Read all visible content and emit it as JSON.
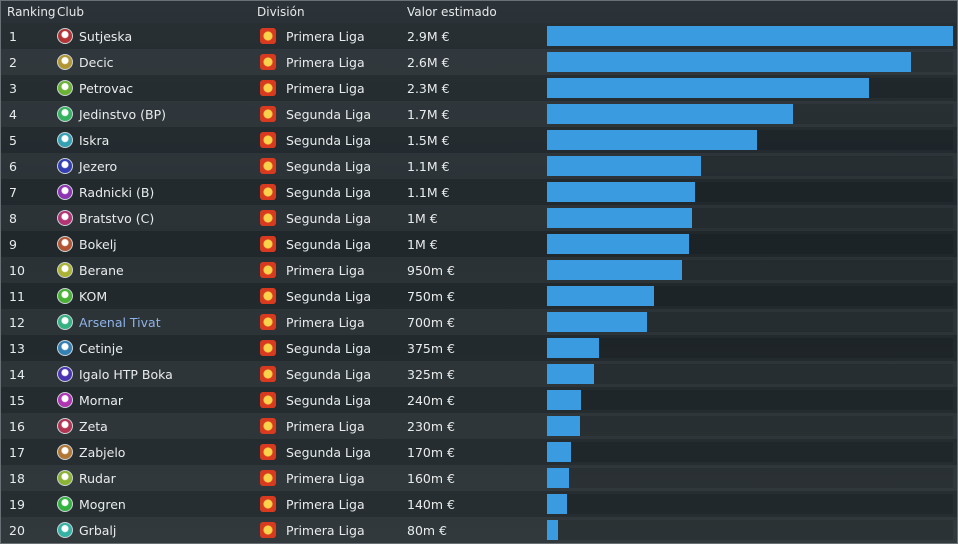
{
  "header": {
    "ranking": "Ranking",
    "club": "Club",
    "division": "División",
    "value": "Valor estimado"
  },
  "colors": {
    "bar": "#3a9be0",
    "link": "#8fb3e8"
  },
  "rows": [
    {
      "rank": "1",
      "club": "Sutjeska",
      "club_icon": "sutjeska-crest-icon",
      "division": "Primera Liga",
      "value": "2.9M €",
      "fraction": 1.0
    },
    {
      "rank": "2",
      "club": "Decic",
      "club_icon": "decic-crest-icon",
      "division": "Primera Liga",
      "value": "2.6M €",
      "fraction": 0.897
    },
    {
      "rank": "3",
      "club": "Petrovac",
      "club_icon": "petrovac-crest-icon",
      "division": "Primera Liga",
      "value": "2.3M €",
      "fraction": 0.793
    },
    {
      "rank": "4",
      "club": "Jedinstvo (BP)",
      "club_icon": "jedinstvo-crest-icon",
      "division": "Segunda Liga",
      "value": "1.7M €",
      "fraction": 0.607
    },
    {
      "rank": "5",
      "club": "Iskra",
      "club_icon": "iskra-crest-icon",
      "division": "Segunda Liga",
      "value": "1.5M €",
      "fraction": 0.517
    },
    {
      "rank": "6",
      "club": "Jezero",
      "club_icon": "jezero-crest-icon",
      "division": "Segunda Liga",
      "value": "1.1M €",
      "fraction": 0.379
    },
    {
      "rank": "7",
      "club": "Radnicki (B)",
      "club_icon": "radnicki-crest-icon",
      "division": "Segunda Liga",
      "value": "1.1M €",
      "fraction": 0.364
    },
    {
      "rank": "8",
      "club": "Bratstvo (C)",
      "club_icon": "bratstvo-crest-icon",
      "division": "Segunda Liga",
      "value": "1M €",
      "fraction": 0.357
    },
    {
      "rank": "9",
      "club": "Bokelj",
      "club_icon": "bokelj-crest-icon",
      "division": "Segunda Liga",
      "value": "1M €",
      "fraction": 0.35
    },
    {
      "rank": "10",
      "club": "Berane",
      "club_icon": "berane-crest-icon",
      "division": "Primera Liga",
      "value": "950m €",
      "fraction": 0.333
    },
    {
      "rank": "11",
      "club": "KOM",
      "club_icon": "kom-crest-icon",
      "division": "Segunda Liga",
      "value": "750m €",
      "fraction": 0.264
    },
    {
      "rank": "12",
      "club": "Arsenal Tivat",
      "club_icon": "arsenal-tivat-crest-icon",
      "division": "Primera Liga",
      "value": "700m €",
      "fraction": 0.246,
      "highlight": true
    },
    {
      "rank": "13",
      "club": "Cetinje",
      "club_icon": "cetinje-crest-icon",
      "division": "Segunda Liga",
      "value": "375m €",
      "fraction": 0.128
    },
    {
      "rank": "14",
      "club": "Igalo HTP Boka",
      "club_icon": "igalo-crest-icon",
      "division": "Segunda Liga",
      "value": "325m €",
      "fraction": 0.115
    },
    {
      "rank": "15",
      "club": "Mornar",
      "club_icon": "mornar-crest-icon",
      "division": "Segunda Liga",
      "value": "240m €",
      "fraction": 0.084
    },
    {
      "rank": "16",
      "club": "Zeta",
      "club_icon": "zeta-crest-icon",
      "division": "Primera Liga",
      "value": "230m €",
      "fraction": 0.081
    },
    {
      "rank": "17",
      "club": "Zabjelo",
      "club_icon": "zabjelo-crest-icon",
      "division": "Segunda Liga",
      "value": "170m €",
      "fraction": 0.059
    },
    {
      "rank": "18",
      "club": "Rudar",
      "club_icon": "rudar-crest-icon",
      "division": "Primera Liga",
      "value": "160m €",
      "fraction": 0.054
    },
    {
      "rank": "19",
      "club": "Mogren",
      "club_icon": "mogren-crest-icon",
      "division": "Primera Liga",
      "value": "140m €",
      "fraction": 0.049
    },
    {
      "rank": "20",
      "club": "Grbalj",
      "club_icon": "grbalj-crest-icon",
      "division": "Primera Liga",
      "value": "80m €",
      "fraction": 0.027
    }
  ]
}
